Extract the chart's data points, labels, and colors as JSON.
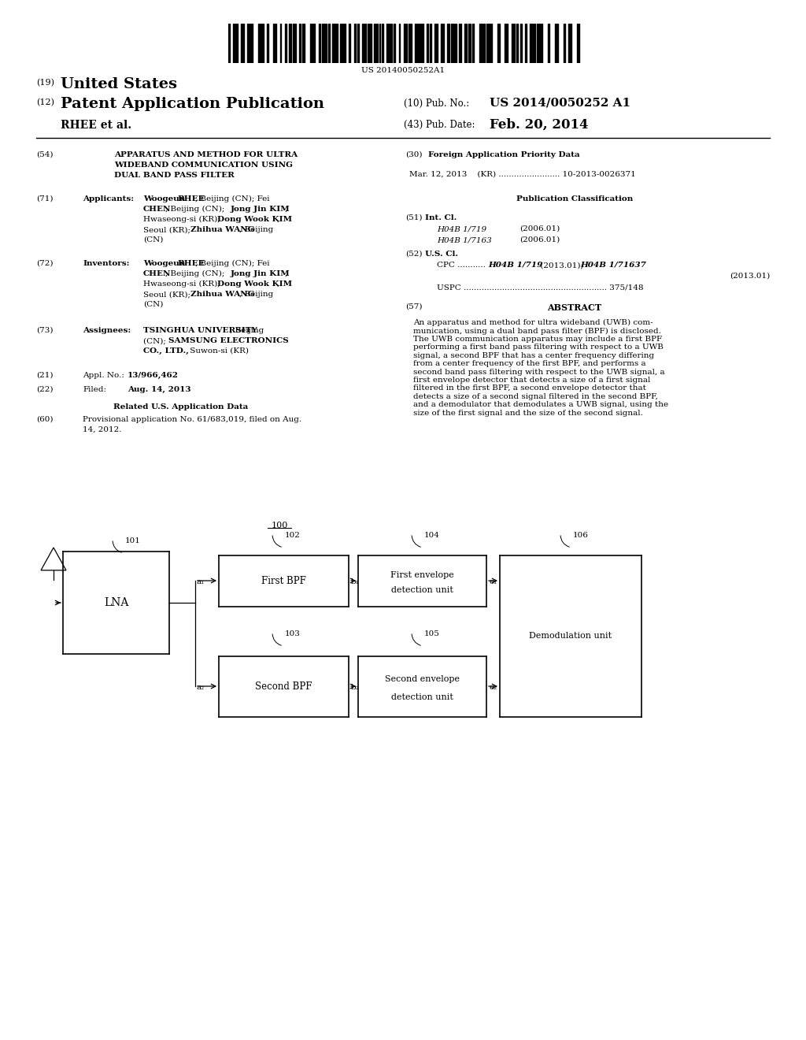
{
  "background_color": "#ffffff",
  "barcode_text": "US 20140050252A1",
  "pub_no": "US 2014/0050252 A1",
  "pub_date": "Feb. 20, 2014",
  "abstract_text": "An apparatus and method for ultra wideband (UWB) com-\nmunication, using a dual band pass filter (BPF) is disclosed.\nThe UWB communication apparatus may include a first BPF\nperforming a first band pass filtering with respect to a UWB\nsignal, a second BPF that has a center frequency differing\nfrom a center frequency of the first BPF, and performs a\nsecond band pass filtering with respect to the UWB signal, a\nfirst envelope detector that detects a size of a first signal\nfiltered in the first BPF, a second envelope detector that\ndetects a size of a second signal filtered in the second BPF,\nand a demodulator that demodulates a UWB signal, using the\nsize of the first signal and the size of the second signal.",
  "diagram_label": "100"
}
